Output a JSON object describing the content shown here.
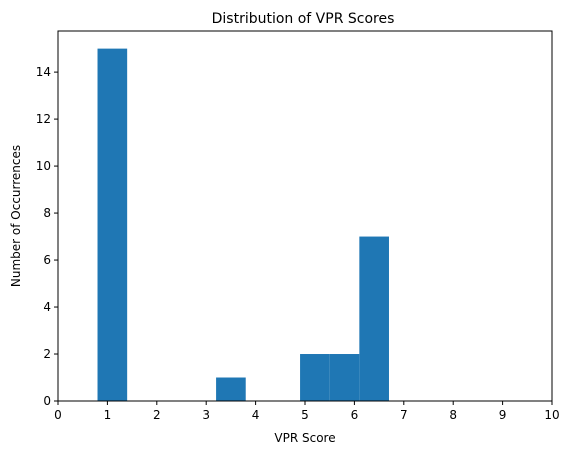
{
  "chart_data": {
    "type": "bar",
    "title": "Distribution of VPR Scores",
    "xlabel": "VPR Score",
    "ylabel": "Number of Occurrences",
    "xlim": [
      0,
      10
    ],
    "ylim": [
      0,
      15.75
    ],
    "x_ticks": [
      "0",
      "1",
      "2",
      "3",
      "4",
      "5",
      "6",
      "7",
      "8",
      "9",
      "10"
    ],
    "y_ticks": [
      "0",
      "2",
      "4",
      "6",
      "8",
      "10",
      "12",
      "14"
    ],
    "bin_width": 0.6,
    "bins": [
      {
        "x_start": 0.8,
        "x_end": 1.4,
        "count": 15
      },
      {
        "x_start": 3.2,
        "x_end": 3.8,
        "count": 1
      },
      {
        "x_start": 4.9,
        "x_end": 5.5,
        "count": 2
      },
      {
        "x_start": 5.5,
        "x_end": 6.1,
        "count": 2
      },
      {
        "x_start": 6.1,
        "x_end": 6.7,
        "count": 7
      }
    ],
    "bar_color": "#1f77b4",
    "grid": false,
    "legend": "none"
  }
}
